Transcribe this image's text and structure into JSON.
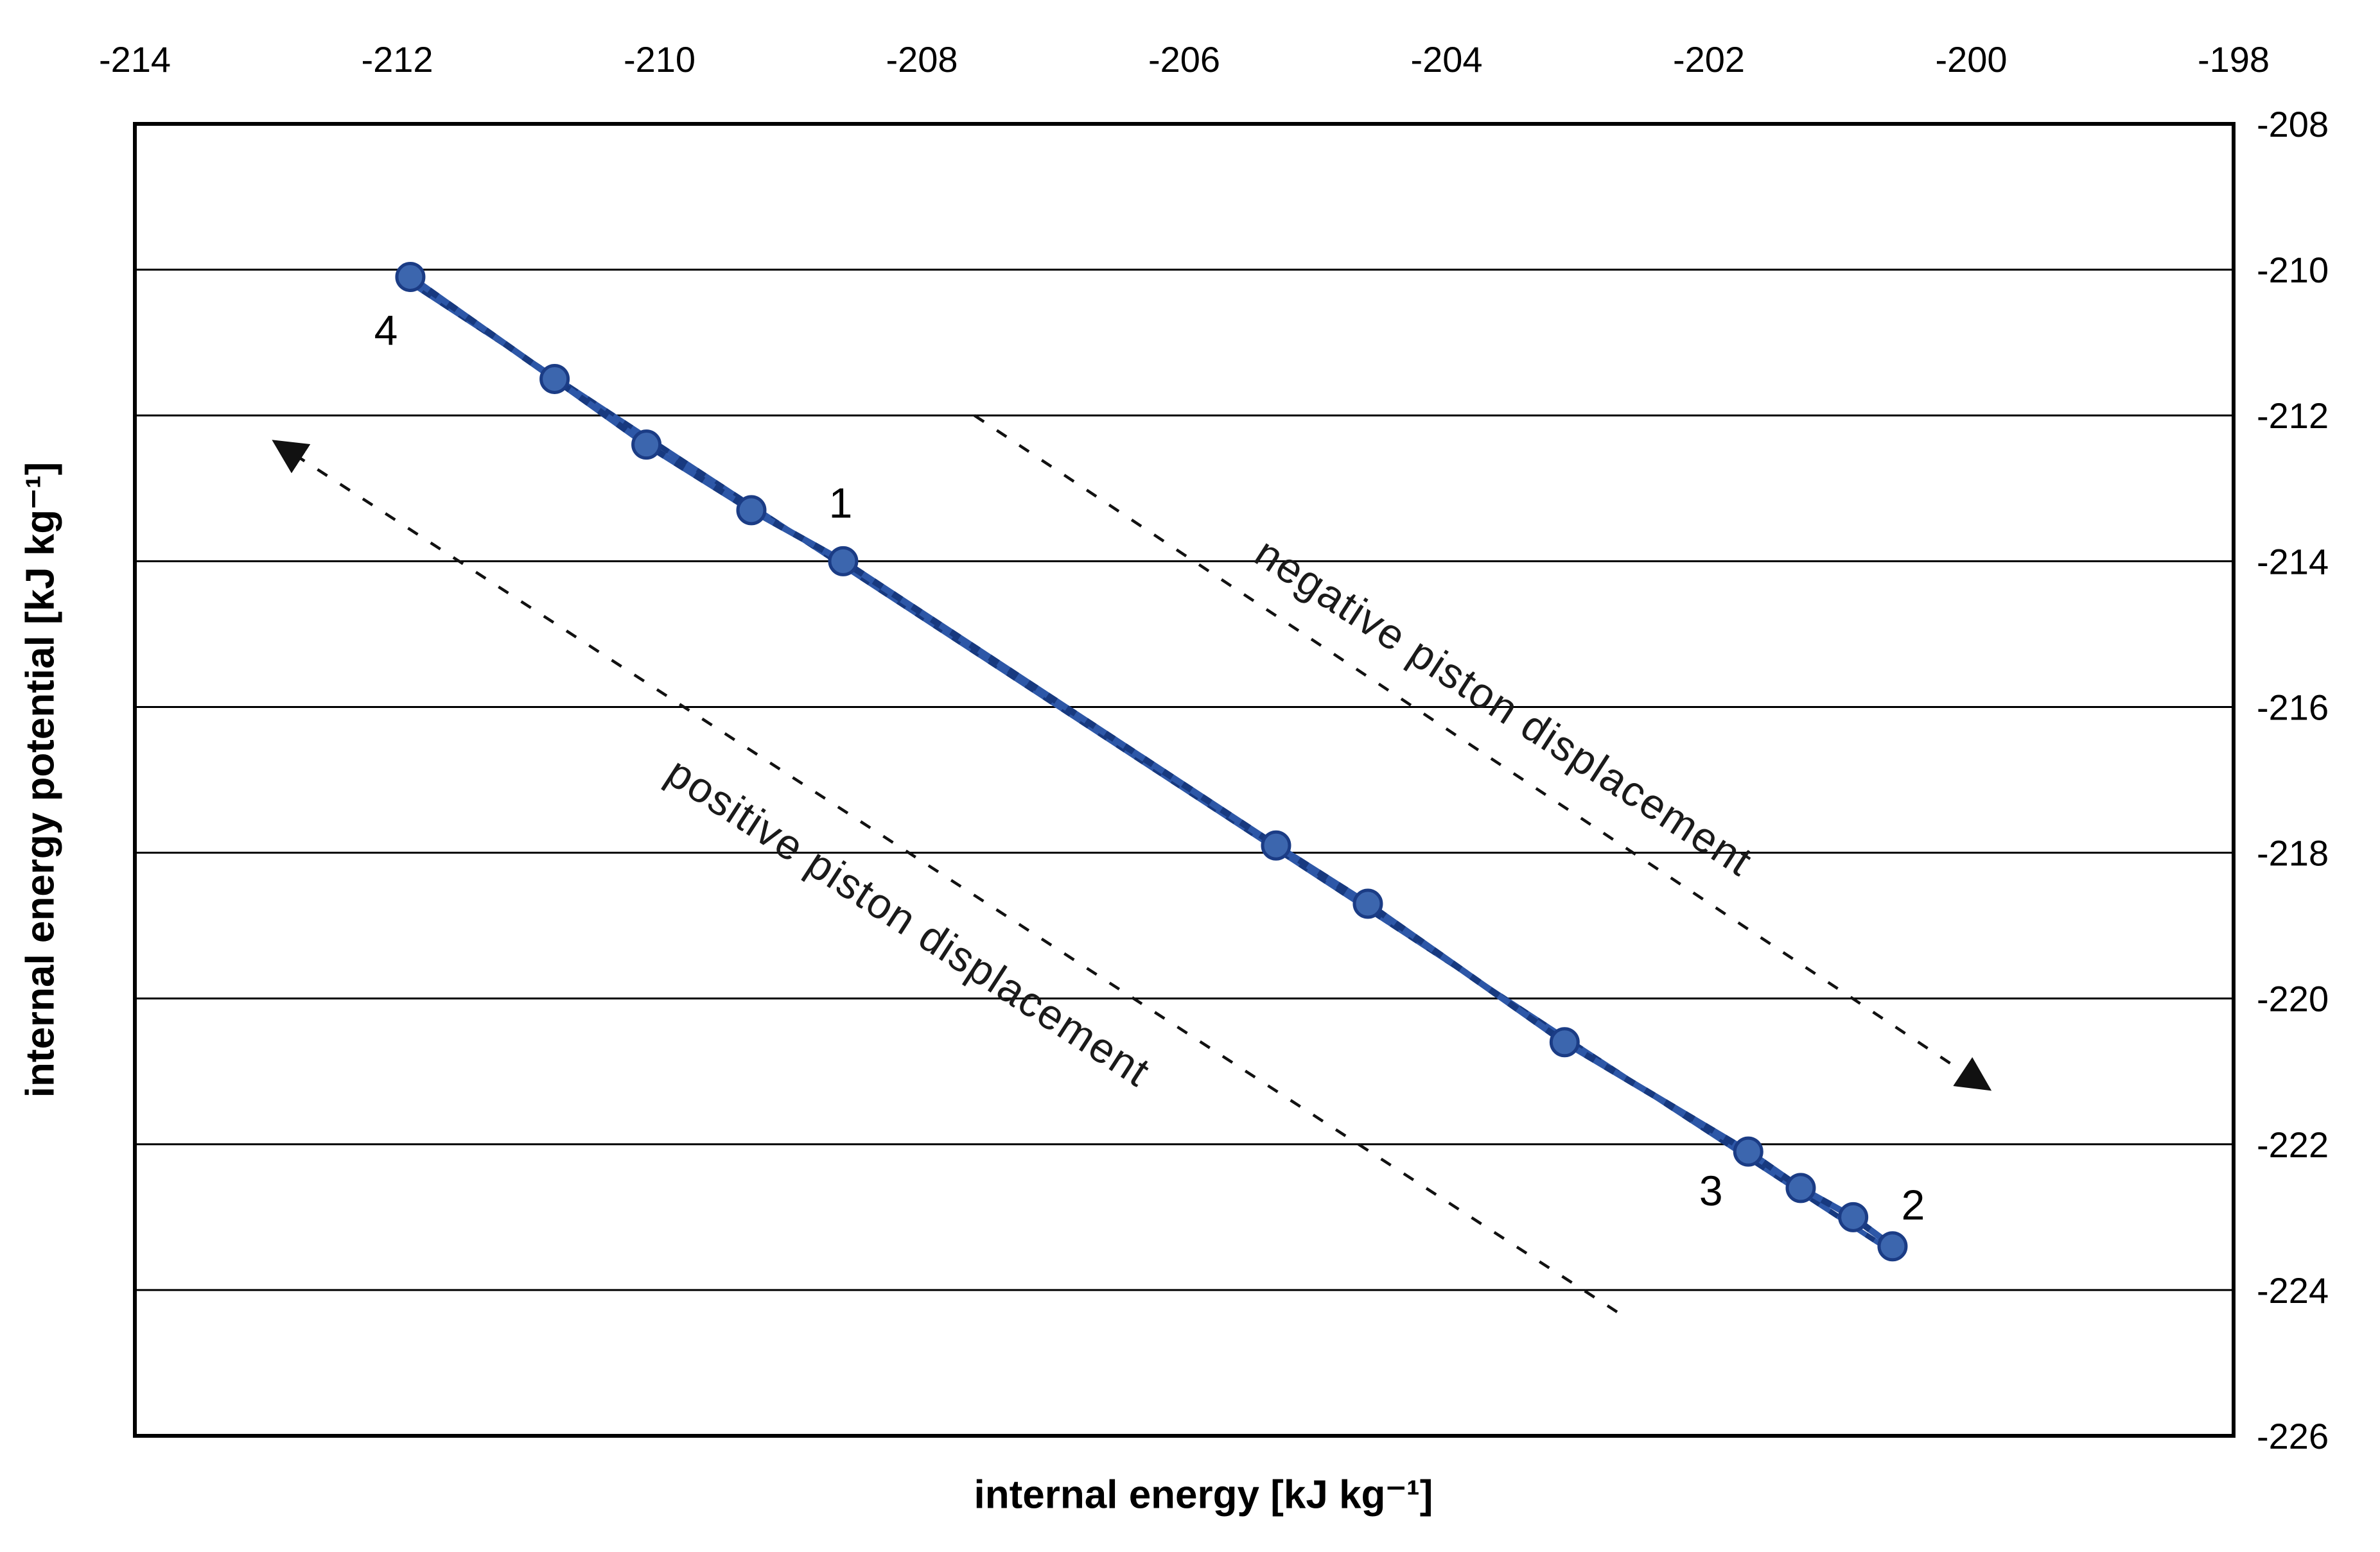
{
  "chart_data": {
    "type": "line",
    "title": "",
    "xlabel": "internal energy [kJ kg⁻¹]",
    "ylabel": "internal energy potential [kJ kg⁻¹]",
    "x_axis": {
      "position": "top",
      "min": -214,
      "max": -198,
      "ticks": [
        -214,
        -212,
        -210,
        -208,
        -206,
        -204,
        -202,
        -200,
        -198
      ]
    },
    "y_axis": {
      "position": "right",
      "min": -226,
      "max": -208,
      "ticks": [
        -208,
        -210,
        -212,
        -214,
        -216,
        -218,
        -220,
        -222,
        -224,
        -226
      ]
    },
    "grid": "horizontal-only",
    "series": [
      {
        "name": "thermodynamic-cycle",
        "marker": "circle",
        "points": [
          {
            "x": -211.9,
            "y": -210.1,
            "label": "4",
            "label_dx": -38,
            "label_dy": 84
          },
          {
            "x": -210.8,
            "y": -211.5
          },
          {
            "x": -210.1,
            "y": -212.4
          },
          {
            "x": -209.3,
            "y": -213.3
          },
          {
            "x": -208.6,
            "y": -214.0,
            "label": "1",
            "label_dx": -4,
            "label_dy": -90
          },
          {
            "x": -205.3,
            "y": -217.9
          },
          {
            "x": -204.6,
            "y": -218.7
          },
          {
            "x": -203.1,
            "y": -220.6
          },
          {
            "x": -201.7,
            "y": -222.1,
            "label": "3",
            "label_dx": -58,
            "label_dy": 62
          },
          {
            "x": -201.3,
            "y": -222.6
          },
          {
            "x": -200.9,
            "y": -223.0
          },
          {
            "x": -200.6,
            "y": -223.4,
            "label": "2",
            "label_dx": 32,
            "label_dy": -64
          }
        ],
        "closed_cycle": true
      }
    ],
    "annotations": {
      "arrows": [
        {
          "name": "negative-piston-displacement",
          "label": "negative piston displacement",
          "x1": -207.6,
          "y1": -212.0,
          "x2": -199.9,
          "y2": -221.2,
          "label_x": -203.56,
          "label_y": -216.0,
          "angle_deg": 33,
          "style": "dashed"
        },
        {
          "name": "positive-piston-displacement",
          "label": "positive piston displacement",
          "x1": -202.7,
          "y1": -224.3,
          "x2": -212.9,
          "y2": -212.4,
          "label_x": -208.1,
          "label_y": -218.95,
          "angle_deg": 33,
          "style": "dashed"
        }
      ]
    }
  },
  "colors": {
    "series_light": "#2d57a7",
    "series_dark": "#17397f",
    "marker_fill": "#3c66ae",
    "marker_stroke": "#1b3c85",
    "grid": "#000000",
    "border": "#000000",
    "arrow": "#111111",
    "background": "#ffffff",
    "text": "#000000"
  }
}
